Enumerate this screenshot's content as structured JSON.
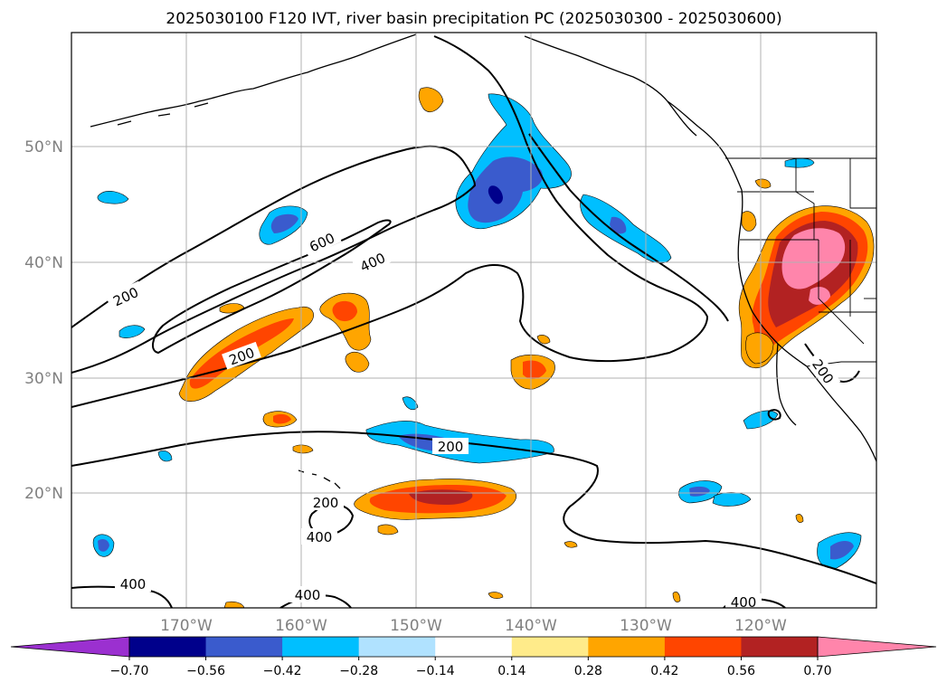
{
  "title": "2025030100 F120 IVT, river basin precipitation PC (2025030300 - 2025030600)",
  "map": {
    "lat_labels": [
      "50°N",
      "40°N",
      "30°N",
      "20°N"
    ],
    "lon_labels": [
      "170°W",
      "160°W",
      "150°W",
      "140°W",
      "130°W",
      "120°W"
    ],
    "lat_range": [
      10,
      60
    ],
    "lon_range": [
      -180,
      -110
    ],
    "gridlines": true
  },
  "ivt_contour_labels": [
    "200",
    "600",
    "400",
    "200",
    "200",
    "200",
    "400",
    "400",
    "400",
    "200",
    "400"
  ],
  "colorbar": {
    "tick_labels": [
      "−0.70",
      "−0.56",
      "−0.42",
      "−0.28",
      "−0.14",
      "0.14",
      "0.28",
      "0.42",
      "0.56",
      "0.70"
    ],
    "colors": [
      "#9b30d0",
      "#00008b",
      "#3a5bcd",
      "#00bfff",
      "#b0e2ff",
      "#ffffff",
      "#ffeb8a",
      "#ffa500",
      "#ff4500",
      "#b22222",
      "#ff85ab"
    ]
  },
  "colors": {
    "positive_orange": "#ffa500",
    "positive_red": "#ff4500",
    "positive_darkred": "#b22222",
    "positive_pink": "#ff85ab",
    "positive_yellow": "#ffeb8a",
    "negative_light": "#b0e2ff",
    "negative_sky": "#00bfff",
    "negative_blue": "#3a5bcd",
    "negative_navy": "#00008b"
  }
}
